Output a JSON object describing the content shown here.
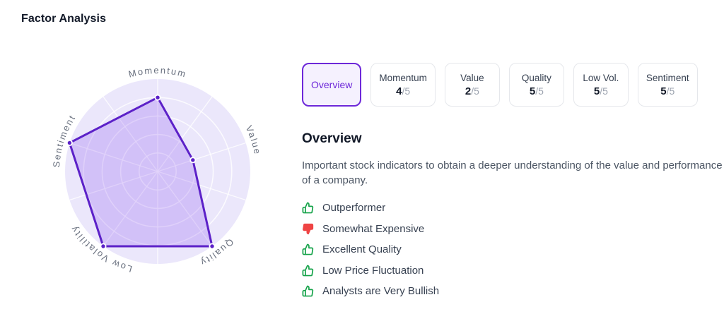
{
  "header": {
    "title": "Factor Analysis"
  },
  "colors": {
    "accent_purple": "#6d28d9",
    "chart_line": "#5c21c8",
    "chart_fill": "rgba(124,58,237,0.22)",
    "chart_disc": "#ebe7fb",
    "grid_line": "rgba(255,255,255,0.78)",
    "positive_green": "#16a34a",
    "negative_red": "#ef4444"
  },
  "chart_data": {
    "type": "radar",
    "title": "",
    "categories": [
      "Momentum",
      "Value",
      "Quality",
      "Low Volatility",
      "Sentiment"
    ],
    "values": [
      4,
      2,
      5,
      5,
      5
    ],
    "max": 5,
    "rings": 5,
    "legend": "none",
    "grid": "circular, white rings and spokes on lavender disc"
  },
  "tabs": [
    {
      "label": "Overview",
      "selected": true
    },
    {
      "label": "Momentum",
      "score": "4",
      "denom": "/5"
    },
    {
      "label": "Value",
      "score": "2",
      "denom": "/5"
    },
    {
      "label": "Quality",
      "score": "5",
      "denom": "/5"
    },
    {
      "label": "Low Vol.",
      "score": "5",
      "denom": "/5"
    },
    {
      "label": "Sentiment",
      "score": "5",
      "denom": "/5"
    }
  ],
  "overview": {
    "heading": "Overview",
    "description": "Important stock indicators to obtain a deeper understanding of the value and performance of a company.",
    "items": [
      {
        "icon": "thumb-up-icon",
        "sentiment": "positive",
        "label": "Outperformer"
      },
      {
        "icon": "thumb-down-icon",
        "sentiment": "negative",
        "label": "Somewhat Expensive"
      },
      {
        "icon": "thumb-up-icon",
        "sentiment": "positive",
        "label": "Excellent Quality"
      },
      {
        "icon": "thumb-up-icon",
        "sentiment": "positive",
        "label": "Low Price Fluctuation"
      },
      {
        "icon": "thumb-up-icon",
        "sentiment": "positive",
        "label": "Analysts are Very Bullish"
      }
    ]
  }
}
